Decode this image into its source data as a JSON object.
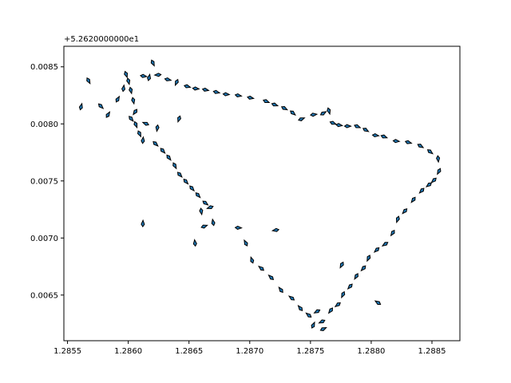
{
  "chart_data": {
    "type": "scatter",
    "marker": "quiver-arrow",
    "y_offset_label": "+5.2620000000e1",
    "xlim": [
      1.28547,
      1.28873
    ],
    "ylim": [
      0.0061,
      0.00868
    ],
    "x_ticks": [
      1.2855,
      1.286,
      1.2865,
      1.287,
      1.2875,
      1.288,
      1.2885
    ],
    "x_tick_labels": [
      "1.2855",
      "1.2860",
      "1.2865",
      "1.2870",
      "1.2875",
      "1.2880",
      "1.2885"
    ],
    "y_ticks": [
      0.0065,
      0.007,
      0.0075,
      0.008,
      0.0085
    ],
    "y_tick_labels": [
      "0.0065",
      "0.0070",
      "0.0075",
      "0.0080",
      "0.0085"
    ],
    "grid": false,
    "colors": {
      "edge": "#000000",
      "face": "#1f77b4"
    },
    "series": [
      {
        "points": [
          [
            1.28561,
            0.008144
          ],
          [
            1.28567,
            0.008384
          ],
          [
            1.28583,
            0.008075
          ],
          [
            1.28591,
            0.00821
          ],
          [
            1.28596,
            0.008305
          ],
          [
            1.28598,
            0.00844
          ],
          [
            1.286,
            0.00838
          ],
          [
            1.28602,
            0.0083
          ],
          [
            1.28604,
            0.00821
          ],
          [
            1.28606,
            0.00811
          ],
          [
            1.28602,
            0.00805
          ],
          [
            1.28606,
            0.008
          ],
          [
            1.28609,
            0.00792
          ],
          [
            1.28612,
            0.00785
          ],
          [
            1.28617,
            0.0084
          ],
          [
            1.2862,
            0.00854
          ],
          [
            1.28625,
            0.00843
          ],
          [
            1.28612,
            0.00842
          ],
          [
            1.28632,
            0.00839
          ],
          [
            1.2864,
            0.00837
          ],
          [
            1.28624,
            0.00797
          ],
          [
            1.28622,
            0.00783
          ],
          [
            1.28628,
            0.00777
          ],
          [
            1.28633,
            0.00771
          ],
          [
            1.28638,
            0.00764
          ],
          [
            1.28642,
            0.00756
          ],
          [
            1.28647,
            0.0075
          ],
          [
            1.28652,
            0.00744
          ],
          [
            1.28657,
            0.00738
          ],
          [
            1.28663,
            0.00731
          ],
          [
            1.28668,
            0.00727
          ],
          [
            1.2866,
            0.00724
          ],
          [
            1.28662,
            0.0071
          ],
          [
            1.2867,
            0.00713
          ],
          [
            1.28648,
            0.00833
          ],
          [
            1.28655,
            0.00831
          ],
          [
            1.28663,
            0.0083
          ],
          [
            1.28672,
            0.00828
          ],
          [
            1.2868,
            0.00826
          ],
          [
            1.2869,
            0.00825
          ],
          [
            1.287,
            0.00823
          ],
          [
            1.28713,
            0.0082
          ],
          [
            1.2872,
            0.00817
          ],
          [
            1.28728,
            0.00814
          ],
          [
            1.28735,
            0.0081
          ],
          [
            1.28742,
            0.00804
          ],
          [
            1.28752,
            0.00808
          ],
          [
            1.2876,
            0.00809
          ],
          [
            1.28765,
            0.00812
          ],
          [
            1.28768,
            0.00801
          ],
          [
            1.28773,
            0.00799
          ],
          [
            1.2878,
            0.00798
          ],
          [
            1.28788,
            0.00798
          ],
          [
            1.28795,
            0.00795
          ],
          [
            1.28803,
            0.0079
          ],
          [
            1.2881,
            0.00789
          ],
          [
            1.2882,
            0.00785
          ],
          [
            1.2883,
            0.00784
          ],
          [
            1.2884,
            0.00781
          ],
          [
            1.28848,
            0.00776
          ],
          [
            1.28855,
            0.0077
          ],
          [
            1.28856,
            0.00759
          ],
          [
            1.28852,
            0.00751
          ],
          [
            1.28848,
            0.00747
          ],
          [
            1.28842,
            0.00742
          ],
          [
            1.28835,
            0.00734
          ],
          [
            1.28828,
            0.00724
          ],
          [
            1.28822,
            0.00717
          ],
          [
            1.28818,
            0.00705
          ],
          [
            1.28812,
            0.00695
          ],
          [
            1.28805,
            0.0069
          ],
          [
            1.28798,
            0.00683
          ],
          [
            1.28794,
            0.00674
          ],
          [
            1.28788,
            0.00667
          ],
          [
            1.28783,
            0.00658
          ],
          [
            1.28777,
            0.00651
          ],
          [
            1.28773,
            0.00642
          ],
          [
            1.28767,
            0.00637
          ],
          [
            1.2876,
            0.00627
          ],
          [
            1.28752,
            0.00623
          ],
          [
            1.28776,
            0.00677
          ],
          [
            1.28756,
            0.00636
          ],
          [
            1.28749,
            0.00632
          ],
          [
            1.28742,
            0.00638
          ],
          [
            1.28735,
            0.00647
          ],
          [
            1.28726,
            0.00654
          ],
          [
            1.28718,
            0.00665
          ],
          [
            1.2871,
            0.00673
          ],
          [
            1.28702,
            0.0068
          ],
          [
            1.28697,
            0.00695
          ],
          [
            1.2869,
            0.00709
          ],
          [
            1.28722,
            0.00707
          ],
          [
            1.28655,
            0.00695
          ],
          [
            1.28642,
            0.00805
          ],
          [
            1.28612,
            0.00712
          ],
          [
            1.28615,
            0.008
          ],
          [
            1.28577,
            0.00816
          ],
          [
            1.2876,
            0.0062
          ],
          [
            1.28806,
            0.00643
          ]
        ]
      }
    ]
  }
}
